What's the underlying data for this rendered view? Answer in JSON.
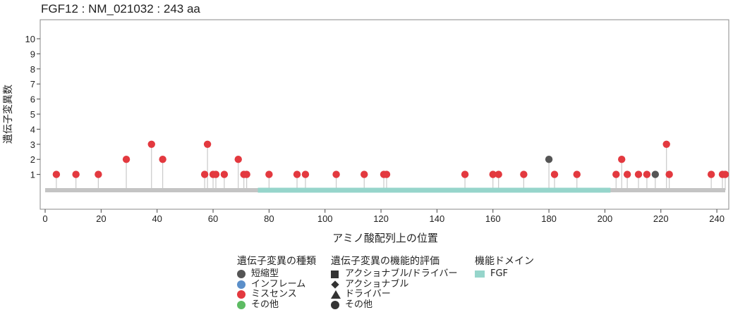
{
  "chart_data": {
    "type": "lollipop",
    "title": "FGF12 : NM_021032 : 243 aa",
    "xlabel": "アミノ酸配列上の位置",
    "ylabel": "遺伝子変異数",
    "xlim": [
      0,
      243
    ],
    "ylim": [
      0,
      11
    ],
    "x_ticks": [
      0,
      20,
      40,
      60,
      80,
      100,
      120,
      140,
      160,
      180,
      200,
      220,
      240
    ],
    "y_ticks": [
      1,
      2,
      3,
      4,
      5,
      6,
      7,
      8,
      9,
      10
    ],
    "protein_length": 243,
    "domains": [
      {
        "name": "FGF",
        "start": 76,
        "end": 202,
        "color": "#96d5cb"
      }
    ],
    "mutation_colors": {
      "truncating": "#555555",
      "inframe": "#5b8fc9",
      "missense": "#e3393f",
      "other": "#5dbb63"
    },
    "mutations": [
      {
        "pos": 4,
        "count": 1,
        "type": "missense"
      },
      {
        "pos": 11,
        "count": 1,
        "type": "missense"
      },
      {
        "pos": 19,
        "count": 1,
        "type": "missense"
      },
      {
        "pos": 29,
        "count": 2,
        "type": "missense"
      },
      {
        "pos": 38,
        "count": 3,
        "type": "missense"
      },
      {
        "pos": 42,
        "count": 2,
        "type": "missense"
      },
      {
        "pos": 57,
        "count": 1,
        "type": "missense"
      },
      {
        "pos": 58,
        "count": 3,
        "type": "missense"
      },
      {
        "pos": 60,
        "count": 1,
        "type": "missense"
      },
      {
        "pos": 61,
        "count": 1,
        "type": "missense"
      },
      {
        "pos": 64,
        "count": 1,
        "type": "missense"
      },
      {
        "pos": 69,
        "count": 2,
        "type": "missense"
      },
      {
        "pos": 71,
        "count": 1,
        "type": "missense"
      },
      {
        "pos": 72,
        "count": 1,
        "type": "missense"
      },
      {
        "pos": 80,
        "count": 1,
        "type": "missense"
      },
      {
        "pos": 90,
        "count": 1,
        "type": "missense"
      },
      {
        "pos": 93,
        "count": 1,
        "type": "missense"
      },
      {
        "pos": 104,
        "count": 1,
        "type": "missense"
      },
      {
        "pos": 114,
        "count": 1,
        "type": "missense"
      },
      {
        "pos": 121,
        "count": 1,
        "type": "missense"
      },
      {
        "pos": 122,
        "count": 1,
        "type": "missense"
      },
      {
        "pos": 150,
        "count": 1,
        "type": "missense"
      },
      {
        "pos": 160,
        "count": 1,
        "type": "missense"
      },
      {
        "pos": 162,
        "count": 1,
        "type": "missense"
      },
      {
        "pos": 171,
        "count": 1,
        "type": "missense"
      },
      {
        "pos": 180,
        "count": 2,
        "type": "truncating"
      },
      {
        "pos": 182,
        "count": 1,
        "type": "missense"
      },
      {
        "pos": 190,
        "count": 1,
        "type": "missense"
      },
      {
        "pos": 204,
        "count": 1,
        "type": "missense"
      },
      {
        "pos": 206,
        "count": 2,
        "type": "missense"
      },
      {
        "pos": 208,
        "count": 1,
        "type": "missense"
      },
      {
        "pos": 212,
        "count": 1,
        "type": "missense"
      },
      {
        "pos": 215,
        "count": 1,
        "type": "missense"
      },
      {
        "pos": 218,
        "count": 1,
        "type": "truncating"
      },
      {
        "pos": 222,
        "count": 3,
        "type": "missense"
      },
      {
        "pos": 223,
        "count": 1,
        "type": "missense"
      },
      {
        "pos": 238,
        "count": 1,
        "type": "missense"
      },
      {
        "pos": 242,
        "count": 1,
        "type": "missense"
      },
      {
        "pos": 243,
        "count": 1,
        "type": "missense"
      }
    ]
  },
  "legend": {
    "mutation_type": {
      "title": "遺伝子変異の種類",
      "items": [
        {
          "label": "短縮型",
          "color": "#555555"
        },
        {
          "label": "インフレーム",
          "color": "#5b8fc9"
        },
        {
          "label": "ミスセンス",
          "color": "#e3393f"
        },
        {
          "label": "その他",
          "color": "#5dbb63"
        }
      ]
    },
    "functional": {
      "title": "遺伝子変異の機能的評価",
      "items": [
        {
          "label": "アクショナブル/ドライバー",
          "shape": "square"
        },
        {
          "label": "アクショナブル",
          "shape": "diamond"
        },
        {
          "label": "ドライバー",
          "shape": "triangle"
        },
        {
          "label": "その他",
          "shape": "circle"
        }
      ]
    },
    "domain": {
      "title": "機能ドメイン",
      "items": [
        {
          "label": "FGF",
          "color": "#96d5cb"
        }
      ]
    }
  }
}
